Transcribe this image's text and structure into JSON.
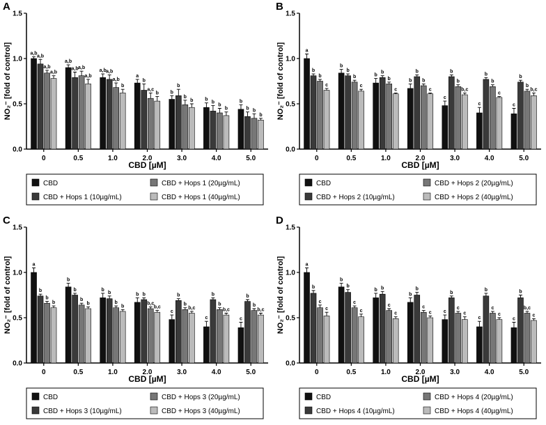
{
  "chart_data": [
    {
      "type": "bar",
      "panel_label": "A",
      "y_label": "NO₂⁻ [fold of control]",
      "x_label": "CBD [µM]",
      "categories": [
        "0",
        "0.5",
        "1.0",
        "2.0",
        "3.0",
        "4.0",
        "5.0"
      ],
      "ylim": [
        0,
        1.5
      ],
      "yticks": [
        {
          "value": 0,
          "label": "0.0"
        },
        {
          "value": 0.5,
          "label": "0.5"
        },
        {
          "value": 1,
          "label": "1.0"
        },
        {
          "value": 1.5,
          "label": "1.5"
        }
      ],
      "series": [
        {
          "name": "CBD",
          "color": "#111111",
          "values": [
            1.0,
            0.9,
            0.79,
            0.73,
            0.55,
            0.46,
            0.44
          ],
          "errors": [
            0.02,
            0.03,
            0.04,
            0.04,
            0.04,
            0.05,
            0.05
          ],
          "annotations": [
            "a,b",
            "a,b",
            "a,b",
            "a",
            "b",
            "b",
            "b"
          ]
        },
        {
          "name": "CBD + Hops 1 (10µg/mL)",
          "color": "#3a3a3a",
          "values": [
            0.94,
            0.79,
            0.77,
            0.65,
            0.59,
            0.42,
            0.36
          ],
          "errors": [
            0.05,
            0.06,
            0.05,
            0.07,
            0.07,
            0.06,
            0.05
          ],
          "annotations": [
            "a,b",
            "a,b",
            "a,b",
            "b",
            "b",
            "b",
            "b"
          ]
        },
        {
          "name": "CBD + Hops 1 (20µg/mL)",
          "color": "#777777",
          "values": [
            0.84,
            0.81,
            0.68,
            0.56,
            0.49,
            0.4,
            0.34
          ],
          "errors": [
            0.03,
            0.05,
            0.05,
            0.06,
            0.05,
            0.05,
            0.05
          ],
          "annotations": [
            "a,b",
            "a,b",
            "a,b",
            "a,c",
            "b",
            "b",
            "b"
          ]
        },
        {
          "name": "CBD + Hops 1 (40µg/mL)",
          "color": "#bbbbbb",
          "values": [
            0.78,
            0.72,
            0.62,
            0.53,
            0.46,
            0.37,
            0.32
          ],
          "errors": [
            0.03,
            0.05,
            0.04,
            0.05,
            0.04,
            0.04,
            0.02
          ],
          "annotations": [
            "a,b",
            "a,b",
            "b",
            "b",
            "b",
            "b",
            "b"
          ]
        }
      ]
    },
    {
      "type": "bar",
      "panel_label": "B",
      "y_label": "NO₂⁻ [fold of control]",
      "x_label": "CBD [µM]",
      "categories": [
        "0",
        "0.5",
        "1.0",
        "2.0",
        "3.0",
        "4.0",
        "5.0"
      ],
      "ylim": [
        0,
        1.5
      ],
      "yticks": [
        {
          "value": 0,
          "label": "0.0"
        },
        {
          "value": 0.5,
          "label": "0.5"
        },
        {
          "value": 1,
          "label": "1.0"
        },
        {
          "value": 1.5,
          "label": "1.5"
        }
      ],
      "series": [
        {
          "name": "CBD",
          "color": "#111111",
          "values": [
            1.0,
            0.84,
            0.73,
            0.67,
            0.48,
            0.4,
            0.39
          ],
          "errors": [
            0.05,
            0.04,
            0.05,
            0.05,
            0.05,
            0.06,
            0.06
          ],
          "annotations": [
            "a",
            "b",
            "b",
            "b",
            "c",
            "c",
            "c"
          ]
        },
        {
          "name": "CBD + Hops 2 (10µg/mL)",
          "color": "#3a3a3a",
          "values": [
            0.81,
            0.81,
            0.79,
            0.8,
            0.8,
            0.77,
            0.74
          ],
          "errors": [
            0.02,
            0.02,
            0.02,
            0.02,
            0.02,
            0.02,
            0.02
          ],
          "annotations": [
            "b",
            "b",
            "b",
            "b",
            "b",
            "b",
            "b"
          ]
        },
        {
          "name": "CBD + Hops 2 (20µg/mL)",
          "color": "#777777",
          "values": [
            0.75,
            0.74,
            0.72,
            0.7,
            0.69,
            0.69,
            0.64
          ],
          "errors": [
            0.02,
            0.02,
            0.02,
            0.02,
            0.02,
            0.02,
            0.02
          ],
          "annotations": [
            "b",
            "b",
            "b",
            "b",
            "b",
            "b",
            "b"
          ]
        },
        {
          "name": "CBD + Hops 2 (40µg/mL)",
          "color": "#bbbbbb",
          "values": [
            0.65,
            0.64,
            0.61,
            0.61,
            0.6,
            0.57,
            0.59
          ],
          "errors": [
            0.02,
            0.02,
            0.01,
            0.01,
            0.02,
            0.01,
            0.03
          ],
          "annotations": [
            "c",
            "c",
            "c",
            "c",
            "b,c",
            "c",
            "b,c"
          ]
        }
      ]
    },
    {
      "type": "bar",
      "panel_label": "C",
      "y_label": "NO₂⁻ [fold of control]",
      "x_label": "CBD [µM]",
      "categories": [
        "0",
        "0.5",
        "1.0",
        "2.0",
        "3.0",
        "4.0",
        "5.0"
      ],
      "ylim": [
        0,
        1.5
      ],
      "yticks": [
        {
          "value": 0,
          "label": "0.0"
        },
        {
          "value": 0.5,
          "label": "0.5"
        },
        {
          "value": 1,
          "label": "1.0"
        },
        {
          "value": 1.5,
          "label": "1.5"
        }
      ],
      "series": [
        {
          "name": "CBD",
          "color": "#111111",
          "values": [
            1.0,
            0.84,
            0.72,
            0.67,
            0.48,
            0.4,
            0.39
          ],
          "errors": [
            0.05,
            0.04,
            0.05,
            0.05,
            0.05,
            0.06,
            0.06
          ],
          "annotations": [
            "a",
            "b",
            "b",
            "b",
            "c",
            "c",
            "c"
          ]
        },
        {
          "name": "CBD + Hops 3 (10µg/mL)",
          "color": "#3a3a3a",
          "values": [
            0.74,
            0.75,
            0.71,
            0.7,
            0.69,
            0.7,
            0.68
          ],
          "errors": [
            0.02,
            0.02,
            0.03,
            0.02,
            0.02,
            0.02,
            0.02
          ],
          "annotations": [
            "b",
            "b",
            "b",
            "b",
            "b",
            "b",
            "b"
          ]
        },
        {
          "name": "CBD + Hops 3 (20µg/mL)",
          "color": "#777777",
          "values": [
            0.66,
            0.64,
            0.61,
            0.6,
            0.59,
            0.59,
            0.58
          ],
          "errors": [
            0.02,
            0.02,
            0.02,
            0.02,
            0.02,
            0.02,
            0.02
          ],
          "annotations": [
            "b",
            "b",
            "b",
            "b,c",
            "b",
            "b",
            "b"
          ]
        },
        {
          "name": "CBD + Hops 3 (40µg/mL)",
          "color": "#bbbbbb",
          "values": [
            0.61,
            0.6,
            0.57,
            0.56,
            0.55,
            0.53,
            0.53
          ],
          "errors": [
            0.02,
            0.02,
            0.02,
            0.02,
            0.02,
            0.02,
            0.02
          ],
          "annotations": [
            "b",
            "b",
            "b",
            "b,c",
            "b,c",
            "b,c",
            "b,c"
          ]
        }
      ]
    },
    {
      "type": "bar",
      "panel_label": "D",
      "y_label": "NO₂⁻ [fold of control]",
      "x_label": "CBD [µM]",
      "categories": [
        "0",
        "0.5",
        "1.0",
        "2.0",
        "3.0",
        "4.0",
        "5.0"
      ],
      "ylim": [
        0,
        1.5
      ],
      "yticks": [
        {
          "value": 0,
          "label": "0.0"
        },
        {
          "value": 0.5,
          "label": "0.5"
        },
        {
          "value": 1,
          "label": "1.0"
        },
        {
          "value": 1.5,
          "label": "1.5"
        }
      ],
      "series": [
        {
          "name": "CBD",
          "color": "#111111",
          "values": [
            1.0,
            0.84,
            0.72,
            0.67,
            0.48,
            0.4,
            0.39
          ],
          "errors": [
            0.05,
            0.04,
            0.05,
            0.05,
            0.05,
            0.06,
            0.06
          ],
          "annotations": [
            "a",
            "b",
            "b",
            "b",
            "c",
            "c",
            "c"
          ]
        },
        {
          "name": "CBD + Hops 4 (10µg/mL)",
          "color": "#3a3a3a",
          "values": [
            0.77,
            0.78,
            0.76,
            0.75,
            0.72,
            0.74,
            0.72
          ],
          "errors": [
            0.03,
            0.03,
            0.03,
            0.03,
            0.02,
            0.03,
            0.03
          ],
          "annotations": [
            "b",
            "b",
            "b",
            "b",
            "b",
            "b",
            "b"
          ]
        },
        {
          "name": "CBD + Hops 4 (20µg/mL)",
          "color": "#777777",
          "values": [
            0.61,
            0.61,
            0.58,
            0.56,
            0.55,
            0.55,
            0.55
          ],
          "errors": [
            0.03,
            0.02,
            0.02,
            0.02,
            0.02,
            0.02,
            0.02
          ],
          "annotations": [
            "c",
            "c",
            "c",
            "c",
            "c",
            "c",
            "b,c"
          ]
        },
        {
          "name": "CBD + Hops 4 (40µg/mL)",
          "color": "#bbbbbb",
          "values": [
            0.52,
            0.51,
            0.49,
            0.5,
            0.48,
            0.48,
            0.47
          ],
          "errors": [
            0.04,
            0.03,
            0.02,
            0.02,
            0.03,
            0.02,
            0.02
          ],
          "annotations": [
            "c",
            "c",
            "c",
            "c",
            "c",
            "c",
            "c"
          ]
        }
      ]
    }
  ]
}
